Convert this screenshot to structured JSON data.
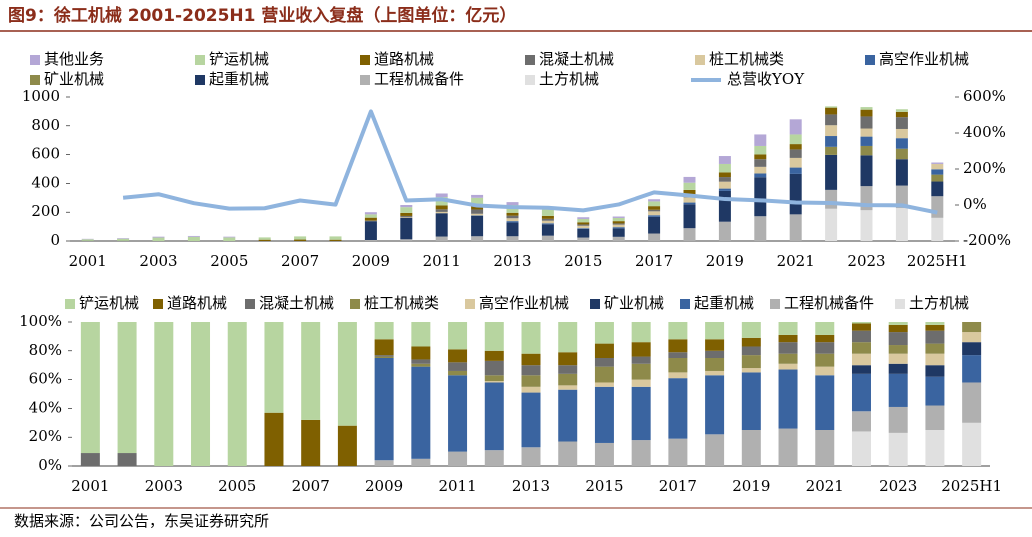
{
  "header": {
    "title": "图9：徐工机械 2001-2025H1 营业收入复盘（上图单位：亿元）",
    "source": "数据来源：公司公告，东吴证券研究所"
  },
  "chart_data": [
    {
      "type": "bar",
      "stacked": true,
      "categories": [
        "2001",
        null,
        "2003",
        null,
        "2005",
        null,
        "2007",
        null,
        "2009",
        null,
        "2011",
        null,
        "2013",
        null,
        "2015",
        null,
        "2017",
        null,
        "2019",
        null,
        "2021",
        null,
        "2023",
        null,
        "2025H1"
      ],
      "ylim": [
        0,
        1000
      ],
      "yticks": [
        0,
        200,
        400,
        600,
        800,
        1000
      ],
      "y2lim": [
        -200,
        600
      ],
      "y2ticks": [
        {
          "value": -200,
          "label": "-200%"
        },
        {
          "value": 0,
          "label": "0%"
        },
        {
          "value": 200,
          "label": "200%"
        },
        {
          "value": 400,
          "label": "400%"
        },
        {
          "value": 600,
          "label": "600%"
        }
      ],
      "series": [
        {
          "name": "其他业务",
          "color": "#b4a7d6",
          "values": [
            3,
            4,
            6,
            6,
            5,
            0,
            0,
            0,
            15,
            15,
            25,
            20,
            20,
            15,
            12,
            10,
            15,
            40,
            55,
            80,
            105,
            0,
            0,
            0,
            10
          ]
        },
        {
          "name": "铲运机械",
          "color": "#b7d5a0",
          "values": [
            11,
            15,
            24,
            29,
            25,
            16,
            22,
            23,
            23,
            40,
            58,
            60,
            54,
            46,
            23,
            22,
            33,
            50,
            59,
            59,
            67,
            9,
            18,
            18,
            0
          ]
        },
        {
          "name": "道路机械",
          "color": "#7f6000",
          "values": [
            0,
            0,
            0,
            0,
            0,
            9,
            10,
            9,
            20,
            21,
            27,
            21,
            20,
            20,
            15,
            16,
            25,
            32,
            32,
            33,
            37,
            47,
            47,
            37,
            0
          ]
        },
        {
          "name": "混凝土机械",
          "color": "#6d6d6d",
          "values": [
            1,
            1,
            0,
            0,
            0,
            0,
            0,
            0,
            2,
            7,
            18,
            30,
            18,
            13,
            9,
            8,
            11,
            20,
            32,
            53,
            59,
            75,
            84,
            82,
            0
          ]
        },
        {
          "name": "桩工机械类",
          "color": "#d9c89e",
          "values": [
            0,
            0,
            0,
            0,
            0,
            0,
            0,
            0,
            2,
            5,
            9,
            12,
            20,
            18,
            17,
            18,
            27,
            36,
            48,
            46,
            67,
            75,
            56,
            64,
            37
          ]
        },
        {
          "name": "高空作业机械",
          "color": "#3a64a0",
          "values": [
            0,
            0,
            0,
            0,
            0,
            0,
            0,
            0,
            0,
            0,
            0,
            3,
            10,
            7,
            5,
            8,
            11,
            12,
            16,
            26,
            44,
            75,
            65,
            73,
            37
          ]
        },
        {
          "name": "矿业机械",
          "color": "#8e8a4a",
          "values": [
            0,
            0,
            0,
            0,
            0,
            0,
            0,
            0,
            0,
            0,
            0,
            0,
            0,
            0,
            0,
            0,
            0,
            0,
            0,
            0,
            0,
            56,
            65,
            73,
            48
          ]
        },
        {
          "name": "起重机械",
          "color": "#1f3864",
          "values": [
            0,
            0,
            0,
            0,
            0,
            0,
            0,
            0,
            131,
            150,
            162,
            141,
            95,
            79,
            60,
            59,
            116,
            166,
            214,
            271,
            281,
            243,
            214,
            183,
            102
          ]
        },
        {
          "name": "工程机械备件",
          "color": "#b0b0b0",
          "values": [
            0,
            0,
            0,
            0,
            0,
            0,
            0,
            0,
            7,
            12,
            31,
            33,
            33,
            37,
            24,
            29,
            52,
            89,
            134,
            172,
            185,
            131,
            167,
            156,
            150
          ]
        },
        {
          "name": "土方机械",
          "color": "#e0e0e0",
          "values": [
            0,
            0,
            0,
            0,
            0,
            0,
            0,
            0,
            0,
            0,
            0,
            0,
            0,
            0,
            0,
            0,
            0,
            0,
            0,
            0,
            0,
            224,
            214,
            229,
            161
          ]
        },
        {
          "name": "总营收YOY",
          "type": "line",
          "axis": "y2",
          "color": "#8fb4de",
          "values": [
            null,
            40,
            60,
            10,
            -20,
            -18,
            25,
            2,
            520,
            25,
            32,
            -3,
            -12,
            -15,
            -30,
            3,
            70,
            53,
            33,
            26,
            14,
            11,
            -1,
            -2,
            -42
          ]
        }
      ]
    },
    {
      "type": "bar",
      "stacked": true,
      "categories": [
        "2001",
        null,
        "2003",
        null,
        "2005",
        null,
        "2007",
        null,
        "2009",
        null,
        "2011",
        null,
        "2013",
        null,
        "2015",
        null,
        "2017",
        null,
        "2019",
        null,
        "2021",
        null,
        "2023",
        null,
        "2025H1"
      ],
      "ylim": [
        0,
        100
      ],
      "yticks": [
        {
          "value": 0,
          "label": "0%"
        },
        {
          "value": 20,
          "label": "20%"
        },
        {
          "value": 40,
          "label": "40%"
        },
        {
          "value": 60,
          "label": "60%"
        },
        {
          "value": 80,
          "label": "80%"
        },
        {
          "value": 100,
          "label": "100%"
        }
      ],
      "series": [
        {
          "name": "铲运机械",
          "color": "#b7d5a0",
          "values": [
            91,
            91,
            100,
            100,
            100,
            63,
            68,
            72,
            12,
            17,
            19,
            20,
            22,
            21,
            15,
            14,
            12,
            12,
            11,
            9,
            9,
            1,
            2,
            2,
            0
          ]
        },
        {
          "name": "道路机械",
          "color": "#7f6000",
          "values": [
            0,
            0,
            0,
            0,
            0,
            37,
            32,
            28,
            11,
            9,
            9,
            7,
            8,
            9,
            10,
            10,
            9,
            8,
            6,
            5,
            5,
            5,
            5,
            4,
            0
          ]
        },
        {
          "name": "混凝土机械",
          "color": "#6d6d6d",
          "values": [
            9,
            9,
            0,
            0,
            0,
            0,
            0,
            0,
            1,
            3,
            6,
            10,
            7,
            6,
            6,
            5,
            4,
            5,
            6,
            8,
            8,
            8,
            9,
            9,
            0
          ]
        },
        {
          "name": "桩工机械类",
          "color": "#8e8a4a",
          "values": [
            0,
            0,
            0,
            0,
            0,
            0,
            0,
            0,
            1,
            2,
            3,
            4,
            8,
            8,
            11,
            11,
            10,
            9,
            9,
            7,
            9,
            8,
            6,
            7,
            7
          ]
        },
        {
          "name": "高空作业机械",
          "color": "#d9c89e",
          "values": [
            0,
            0,
            0,
            0,
            0,
            0,
            0,
            0,
            0,
            0,
            0,
            1,
            4,
            3,
            3,
            5,
            4,
            3,
            3,
            4,
            6,
            8,
            7,
            8,
            7
          ]
        },
        {
          "name": "矿业机械",
          "color": "#1f3864",
          "values": [
            0,
            0,
            0,
            0,
            0,
            0,
            0,
            0,
            0,
            0,
            0,
            0,
            0,
            0,
            0,
            0,
            0,
            0,
            0,
            0,
            0,
            6,
            7,
            8,
            9
          ]
        },
        {
          "name": "起重机械",
          "color": "#3a64a0",
          "values": [
            0,
            0,
            0,
            0,
            0,
            0,
            0,
            0,
            71,
            64,
            53,
            47,
            38,
            36,
            39,
            37,
            42,
            41,
            40,
            41,
            38,
            26,
            23,
            20,
            19
          ]
        },
        {
          "name": "工程机械备件",
          "color": "#b0b0b0",
          "values": [
            0,
            0,
            0,
            0,
            0,
            0,
            0,
            0,
            4,
            5,
            10,
            11,
            13,
            17,
            16,
            18,
            19,
            22,
            25,
            26,
            25,
            14,
            18,
            17,
            28
          ]
        },
        {
          "name": "土方机械",
          "color": "#e0e0e0",
          "values": [
            0,
            0,
            0,
            0,
            0,
            0,
            0,
            0,
            0,
            0,
            0,
            0,
            0,
            0,
            0,
            0,
            0,
            0,
            0,
            0,
            0,
            24,
            23,
            25,
            30
          ]
        }
      ]
    }
  ]
}
